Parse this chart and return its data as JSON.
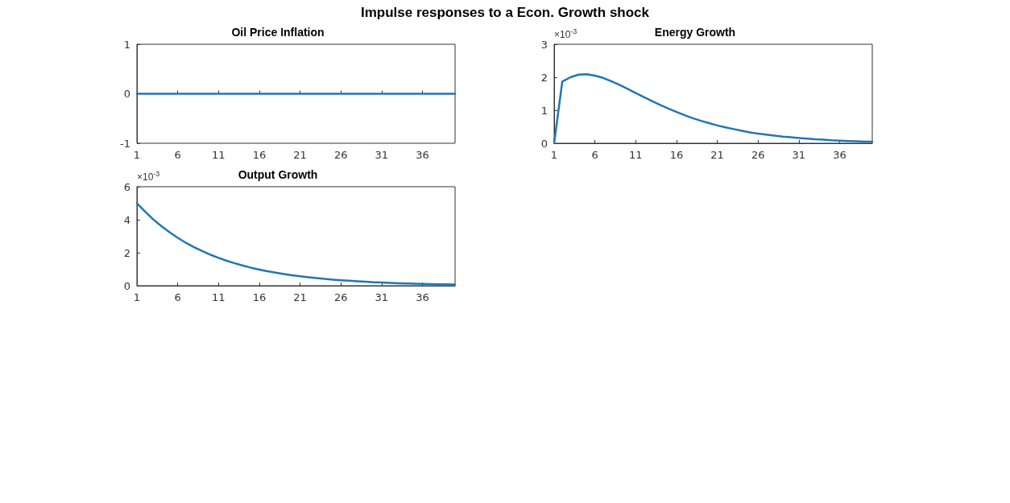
{
  "chart_data": [
    {
      "type": "line",
      "title": "Oil Price Inflation",
      "annotations": [
        "Impulse responses to a Econ. Growth shock"
      ],
      "x": [
        1,
        2,
        3,
        4,
        5,
        6,
        7,
        8,
        9,
        10,
        11,
        12,
        13,
        14,
        15,
        16,
        17,
        18,
        19,
        20,
        21,
        22,
        23,
        24,
        25,
        26,
        27,
        28,
        29,
        30,
        31,
        32,
        33,
        34,
        35,
        36,
        37,
        38,
        39,
        40
      ],
      "xlim": [
        1,
        40
      ],
      "xticks": [
        1,
        6,
        11,
        16,
        21,
        26,
        31,
        36
      ],
      "ylim": [
        -1,
        1
      ],
      "yticks": [
        -1,
        0,
        1
      ],
      "grid": false,
      "marker": "none",
      "line_style": "solid",
      "series": [
        {
          "color": "#1f77b4",
          "values": [
            0,
            0,
            0,
            0,
            0,
            0,
            0,
            0,
            0,
            0,
            0,
            0,
            0,
            0,
            0,
            0,
            0,
            0,
            0,
            0,
            0,
            0,
            0,
            0,
            0,
            0,
            0,
            0,
            0,
            0,
            0,
            0,
            0,
            0,
            0,
            0,
            0,
            0,
            0,
            0
          ]
        }
      ]
    },
    {
      "type": "line",
      "title": "Energy Growth",
      "ylabel": "×10$^{-3}$",
      "x": [
        1,
        2,
        3,
        4,
        5,
        6,
        7,
        8,
        9,
        10,
        11,
        12,
        13,
        14,
        15,
        16,
        17,
        18,
        19,
        20,
        21,
        22,
        23,
        24,
        25,
        26,
        27,
        28,
        29,
        30,
        31,
        32,
        33,
        34,
        35,
        36,
        37,
        38,
        39,
        40
      ],
      "xlim": [
        1,
        40
      ],
      "xticks": [
        1,
        6,
        11,
        16,
        21,
        26,
        31,
        36
      ],
      "ylim": [
        0,
        3
      ],
      "yticks": [
        0,
        1,
        2,
        3
      ],
      "grid": false,
      "marker": "none",
      "line_style": "solid",
      "series": [
        {
          "color": "#1f77b4",
          "values": [
            0,
            1.87,
            2.0,
            2.08,
            2.09,
            2.05,
            1.98,
            1.88,
            1.77,
            1.65,
            1.52,
            1.4,
            1.28,
            1.16,
            1.05,
            0.95,
            0.85,
            0.76,
            0.68,
            0.61,
            0.54,
            0.48,
            0.43,
            0.38,
            0.33,
            0.29,
            0.26,
            0.23,
            0.2,
            0.18,
            0.16,
            0.14,
            0.12,
            0.11,
            0.09,
            0.08,
            0.07,
            0.06,
            0.05,
            0.05
          ]
        }
      ]
    },
    {
      "type": "line",
      "title": "Output Growth",
      "ylabel": "×10$^{-3}$",
      "x": [
        1,
        2,
        3,
        4,
        5,
        6,
        7,
        8,
        9,
        10,
        11,
        12,
        13,
        14,
        15,
        16,
        17,
        18,
        19,
        20,
        21,
        22,
        23,
        24,
        25,
        26,
        27,
        28,
        29,
        30,
        31,
        32,
        33,
        34,
        35,
        36,
        37,
        38,
        39,
        40
      ],
      "xlim": [
        1,
        40
      ],
      "xticks": [
        1,
        6,
        11,
        16,
        21,
        26,
        31,
        36
      ],
      "ylim": [
        0,
        6
      ],
      "yticks": [
        0,
        2,
        4,
        6
      ],
      "grid": false,
      "marker": "none",
      "line_style": "solid",
      "series": [
        {
          "color": "#1f77b4",
          "values": [
            5.0,
            4.49,
            4.02,
            3.61,
            3.24,
            2.9,
            2.6,
            2.34,
            2.1,
            1.88,
            1.69,
            1.51,
            1.36,
            1.22,
            1.09,
            0.98,
            0.88,
            0.79,
            0.71,
            0.63,
            0.57,
            0.51,
            0.46,
            0.41,
            0.37,
            0.33,
            0.3,
            0.27,
            0.24,
            0.21,
            0.19,
            0.17,
            0.15,
            0.14,
            0.12,
            0.11,
            0.1,
            0.09,
            0.08,
            0.07
          ]
        }
      ]
    }
  ]
}
